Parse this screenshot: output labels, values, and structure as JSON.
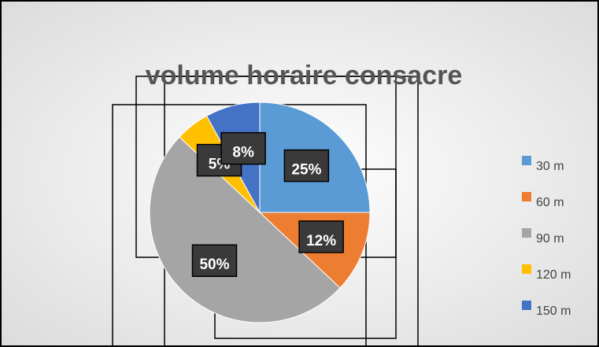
{
  "chart_data": {
    "type": "pie",
    "title": "volume horaire consacre",
    "categories": [
      "30 m",
      "60 m",
      "90 m",
      "120 m",
      "150 m"
    ],
    "values": [
      25,
      12,
      50,
      5,
      8
    ],
    "value_labels": [
      "25%",
      "12%",
      "50%",
      "5%",
      "8%"
    ],
    "colors": [
      "#5b9bd5",
      "#ed7d31",
      "#a5a5a5",
      "#ffc000",
      "#4472c4"
    ],
    "legend": "right"
  }
}
